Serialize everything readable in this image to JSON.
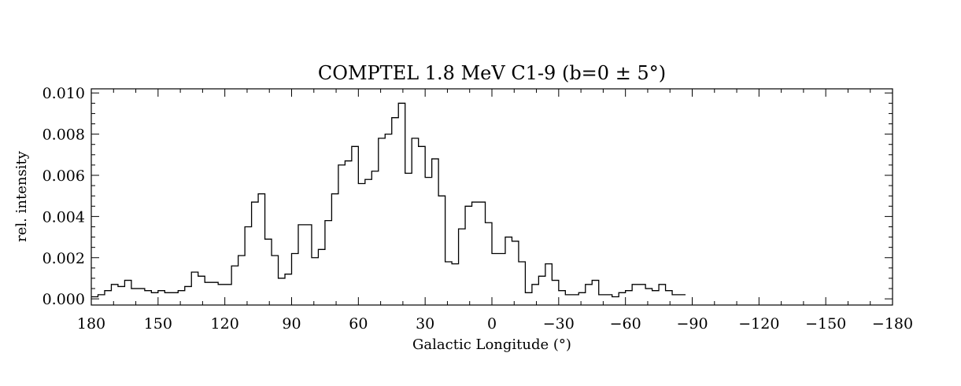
{
  "chart_data": {
    "type": "line",
    "style": "step",
    "title": "COMPTEL 1.8 MeV C1-9 (b=0 ± 5°)",
    "xlabel": "Galactic Longitude (°)",
    "ylabel": "rel. intensity",
    "xlim": [
      180,
      -180
    ],
    "ylim": [
      -0.0003,
      0.0102
    ],
    "x_ticks": [
      180,
      150,
      120,
      90,
      60,
      30,
      0,
      -30,
      -60,
      -90,
      -120,
      -150,
      -180
    ],
    "x_tick_labels": [
      "180",
      "150",
      "120",
      "90",
      "60",
      "30",
      "0",
      "−30",
      "−60",
      "−90",
      "−120",
      "−150",
      "−180"
    ],
    "y_ticks": [
      0.0,
      0.002,
      0.004,
      0.006,
      0.008,
      0.01
    ],
    "y_tick_labels": [
      "0.000",
      "0.002",
      "0.004",
      "0.006",
      "0.008",
      "0.010"
    ],
    "bin_width_deg": 3,
    "bin_start_deg": 180,
    "series": [
      {
        "values": [
          0.0001,
          0.0002,
          0.0004,
          0.0007,
          0.0006,
          0.0009,
          0.0005,
          0.0005,
          0.0004,
          0.0003,
          0.0004,
          0.0003,
          0.0003,
          0.0004,
          0.0006,
          0.0013,
          0.0011,
          0.0008,
          0.0008,
          0.0007,
          0.0007,
          0.0016,
          0.0021,
          0.0035,
          0.0047,
          0.0051,
          0.0029,
          0.0021,
          0.001,
          0.0012,
          0.0022,
          0.0036,
          0.0036,
          0.002,
          0.0024,
          0.0038,
          0.0051,
          0.0065,
          0.0067,
          0.0074,
          0.0056,
          0.0058,
          0.0062,
          0.0078,
          0.008,
          0.0088,
          0.0095,
          0.0061,
          0.0078,
          0.0074,
          0.0059,
          0.0068,
          0.005,
          0.0018,
          0.0017,
          0.0034,
          0.0045,
          0.0047,
          0.0047,
          0.0037,
          0.0022,
          0.0022,
          0.003,
          0.0028,
          0.0018,
          0.0003,
          0.0007,
          0.0011,
          0.0017,
          0.0009,
          0.0004,
          0.0002,
          0.0002,
          0.0003,
          0.0007,
          0.0009,
          0.0002,
          0.0002,
          0.0001,
          0.0003,
          0.0004,
          0.0007,
          0.0007,
          0.0005,
          0.0004,
          0.0007,
          0.0004,
          0.0002,
          0.0002
        ]
      }
    ],
    "grid": false,
    "line_color": "#000000"
  }
}
